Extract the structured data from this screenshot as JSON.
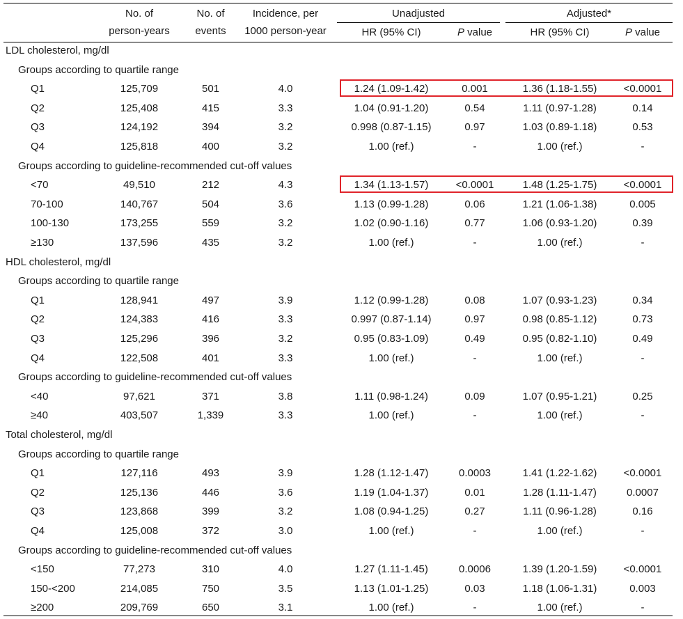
{
  "header": {
    "person_years_l1": "No. of",
    "person_years_l2": "person-years",
    "events_l1": "No. of",
    "events_l2": "events",
    "incidence_l1": "Incidence, per",
    "incidence_l2": "1000 person-year",
    "unadjusted": "Unadjusted",
    "adjusted": "Adjusted*",
    "hr_unadj": "HR (95% CI)",
    "p_label": "P",
    "p_value_suffix": " value",
    "hr_adj": "HR (95% CI)"
  },
  "sections": [
    {
      "title": "LDL cholesterol, mg/dl",
      "groups": [
        {
          "title": "Groups according to quartile range",
          "rows": [
            {
              "label": "Q1",
              "py": "125,709",
              "ev": "501",
              "inc": "4.0",
              "hr_u": "1.24 (1.09-1.42)",
              "p_u": "0.001",
              "hr_a": "1.36 (1.18-1.55)",
              "p_a": "<0.0001",
              "highlight": true
            },
            {
              "label": "Q2",
              "py": "125,408",
              "ev": "415",
              "inc": "3.3",
              "hr_u": "1.04 (0.91-1.20)",
              "p_u": "0.54",
              "hr_a": "1.11 (0.97-1.28)",
              "p_a": "0.14"
            },
            {
              "label": "Q3",
              "py": "124,192",
              "ev": "394",
              "inc": "3.2",
              "hr_u": "0.998 (0.87-1.15)",
              "p_u": "0.97",
              "hr_a": "1.03 (0.89-1.18)",
              "p_a": "0.53"
            },
            {
              "label": "Q4",
              "py": "125,818",
              "ev": "400",
              "inc": "3.2",
              "hr_u": "1.00 (ref.)",
              "p_u": "-",
              "hr_a": "1.00 (ref.)",
              "p_a": "-"
            }
          ]
        },
        {
          "title": "Groups according to guideline-recommended cut-off values",
          "rows": [
            {
              "label": "<70",
              "py": "49,510",
              "ev": "212",
              "inc": "4.3",
              "hr_u": "1.34 (1.13-1.57)",
              "p_u": "<0.0001",
              "hr_a": "1.48 (1.25-1.75)",
              "p_a": "<0.0001",
              "highlight": true
            },
            {
              "label": "70-100",
              "py": "140,767",
              "ev": "504",
              "inc": "3.6",
              "hr_u": "1.13 (0.99-1.28)",
              "p_u": "0.06",
              "hr_a": "1.21 (1.06-1.38)",
              "p_a": "0.005"
            },
            {
              "label": "100-130",
              "py": "173,255",
              "ev": "559",
              "inc": "3.2",
              "hr_u": "1.02 (0.90-1.16)",
              "p_u": "0.77",
              "hr_a": "1.06 (0.93-1.20)",
              "p_a": "0.39"
            },
            {
              "label": "≥130",
              "py": "137,596",
              "ev": "435",
              "inc": "3.2",
              "hr_u": "1.00 (ref.)",
              "p_u": "-",
              "hr_a": "1.00 (ref.)",
              "p_a": "-"
            }
          ]
        }
      ]
    },
    {
      "title": "HDL cholesterol, mg/dl",
      "groups": [
        {
          "title": "Groups according to quartile range",
          "rows": [
            {
              "label": "Q1",
              "py": "128,941",
              "ev": "497",
              "inc": "3.9",
              "hr_u": "1.12 (0.99-1.28)",
              "p_u": "0.08",
              "hr_a": "1.07 (0.93-1.23)",
              "p_a": "0.34"
            },
            {
              "label": "Q2",
              "py": "124,383",
              "ev": "416",
              "inc": "3.3",
              "hr_u": "0.997 (0.87-1.14)",
              "p_u": "0.97",
              "hr_a": "0.98 (0.85-1.12)",
              "p_a": "0.73"
            },
            {
              "label": "Q3",
              "py": "125,296",
              "ev": "396",
              "inc": "3.2",
              "hr_u": "0.95 (0.83-1.09)",
              "p_u": "0.49",
              "hr_a": "0.95 (0.82-1.10)",
              "p_a": "0.49"
            },
            {
              "label": "Q4",
              "py": "122,508",
              "ev": "401",
              "inc": "3.3",
              "hr_u": "1.00 (ref.)",
              "p_u": "-",
              "hr_a": "1.00 (ref.)",
              "p_a": "-"
            }
          ]
        },
        {
          "title": "Groups according to  guideline-recommended cut-off values",
          "rows": [
            {
              "label": "<40",
              "py": "97,621",
              "ev": "371",
              "inc": "3.8",
              "hr_u": "1.11 (0.98-1.24)",
              "p_u": "0.09",
              "hr_a": "1.07 (0.95-1.21)",
              "p_a": "0.25"
            },
            {
              "label": "≥40",
              "py": "403,507",
              "ev": "1,339",
              "inc": "3.3",
              "hr_u": "1.00 (ref.)",
              "p_u": "-",
              "hr_a": "1.00 (ref.)",
              "p_a": "-"
            }
          ]
        }
      ]
    },
    {
      "title": "Total cholesterol, mg/dl",
      "groups": [
        {
          "title": "Groups according to quartile range",
          "rows": [
            {
              "label": "Q1",
              "py": "127,116",
              "ev": "493",
              "inc": "3.9",
              "hr_u": "1.28 (1.12-1.47)",
              "p_u": "0.0003",
              "hr_a": "1.41 (1.22-1.62)",
              "p_a": "<0.0001"
            },
            {
              "label": "Q2",
              "py": "125,136",
              "ev": "446",
              "inc": "3.6",
              "hr_u": "1.19 (1.04-1.37)",
              "p_u": "0.01",
              "hr_a": "1.28 (1.11-1.47)",
              "p_a": "0.0007"
            },
            {
              "label": "Q3",
              "py": "123,868",
              "ev": "399",
              "inc": "3.2",
              "hr_u": "1.08 (0.94-1.25)",
              "p_u": "0.27",
              "hr_a": "1.11 (0.96-1.28)",
              "p_a": "0.16"
            },
            {
              "label": "Q4",
              "py": "125,008",
              "ev": "372",
              "inc": "3.0",
              "hr_u": "1.00 (ref.)",
              "p_u": "-",
              "hr_a": "1.00 (ref.)",
              "p_a": "-"
            }
          ]
        },
        {
          "title": "Groups according to  guideline-recommended cut-off values",
          "rows": [
            {
              "label": "<150",
              "py": "77,273",
              "ev": "310",
              "inc": "4.0",
              "hr_u": "1.27 (1.11-1.45)",
              "p_u": "0.0006",
              "hr_a": "1.39 (1.20-1.59)",
              "p_a": "<0.0001"
            },
            {
              "label": "150-<200",
              "py": "214,085",
              "ev": "750",
              "inc": "3.5",
              "hr_u": "1.13 (1.01-1.25)",
              "p_u": "0.03",
              "hr_a": "1.18 (1.06-1.31)",
              "p_a": "0.003"
            },
            {
              "label": "≥200",
              "py": "209,769",
              "ev": "650",
              "inc": "3.1",
              "hr_u": "1.00 (ref.)",
              "p_u": "-",
              "hr_a": "1.00 (ref.)",
              "p_a": "-"
            }
          ]
        }
      ]
    }
  ],
  "colors": {
    "highlight_border": "#e0242a",
    "rule": "#000000",
    "text": "#1a1a1a"
  }
}
